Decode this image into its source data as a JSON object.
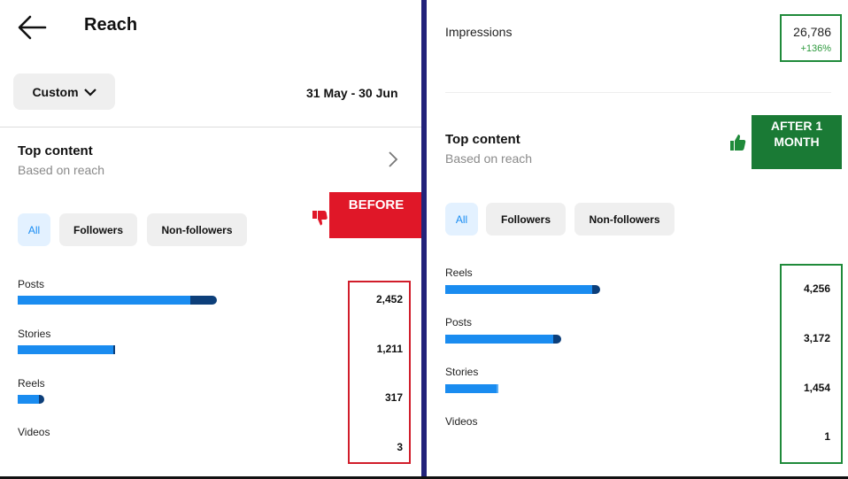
{
  "left": {
    "title": "Reach",
    "custom_label": "Custom",
    "date_range": "31 May - 30 Jun",
    "top_content": {
      "title": "Top content",
      "subtitle": "Based on reach"
    },
    "filters": [
      "All",
      "Followers",
      "Non-followers"
    ],
    "rows": [
      {
        "label": "Posts",
        "value": "2,452",
        "share": 1.0
      },
      {
        "label": "Stories",
        "value": "1,211",
        "share": 0.49
      },
      {
        "label": "Reels",
        "value": "317",
        "share": 0.13
      },
      {
        "label": "Videos",
        "value": "3",
        "share": 0.0
      }
    ],
    "badge": "BEFORE",
    "colors": {
      "badge_bg": "#e01728",
      "highlight_border": "#d11d2a",
      "bar": "#1a8cf0",
      "bar_tail": "#0d3f7a"
    }
  },
  "right": {
    "impressions_label": "Impressions",
    "impressions_value": "26,786",
    "impressions_change": "+136%",
    "top_content": {
      "title": "Top content",
      "subtitle": "Based on reach"
    },
    "filters": [
      "All",
      "Followers",
      "Non-followers"
    ],
    "rows": [
      {
        "label": "Reels",
        "value": "4,256",
        "share": 1.0
      },
      {
        "label": "Posts",
        "value": "3,172",
        "share": 0.75
      },
      {
        "label": "Stories",
        "value": "1,454",
        "share": 0.34
      },
      {
        "label": "Videos",
        "value": "1",
        "share": 0.0
      }
    ],
    "badge_line1": "AFTER 1",
    "badge_line2": "MONTH",
    "colors": {
      "badge_bg": "#1a7a35",
      "highlight_border": "#1f8a3a",
      "positive": "#2e9a3e"
    }
  },
  "icons": [
    "back-arrow-icon",
    "chevron-down-icon",
    "chevron-right-icon",
    "thumbs-down-icon",
    "thumbs-up-icon"
  ]
}
